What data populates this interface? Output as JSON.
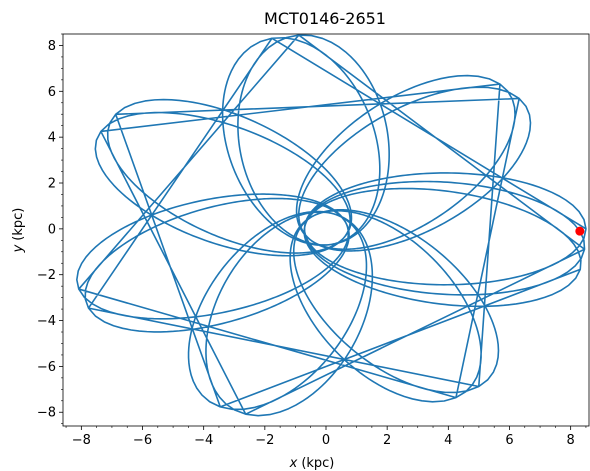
{
  "chart_data": {
    "type": "line",
    "title": "MCT0146-2651",
    "xlabel_var": "x",
    "xlabel_unit": "(kpc)",
    "ylabel_var": "y",
    "ylabel_unit": "(kpc)",
    "xlim": [
      -8.6,
      8.6
    ],
    "ylim": [
      -8.6,
      8.5
    ],
    "xticks": [
      -8,
      -6,
      -4,
      -2,
      0,
      2,
      4,
      6,
      8
    ],
    "yticks": [
      -8,
      -6,
      -4,
      -2,
      0,
      2,
      4,
      6,
      8
    ],
    "tick_labels_x": [
      "−8",
      "−6",
      "−4",
      "−2",
      "0",
      "2",
      "4",
      "6",
      "8"
    ],
    "tick_labels_y": [
      "−8",
      "−6",
      "−4",
      "−2",
      "0",
      "2",
      "4",
      "6",
      "8"
    ],
    "minor_ticks": true,
    "grid": false,
    "orbit": {
      "color": "#1f77b4",
      "apocenter_kpc": 8.5,
      "pericenter_kpc": 0.7,
      "number_of_loops": 15,
      "precession_deg_per_loop": -102,
      "start_angle_deg": 0
    },
    "current_position": {
      "x": 8.3,
      "y": -0.1,
      "color": "#ff0000"
    }
  }
}
